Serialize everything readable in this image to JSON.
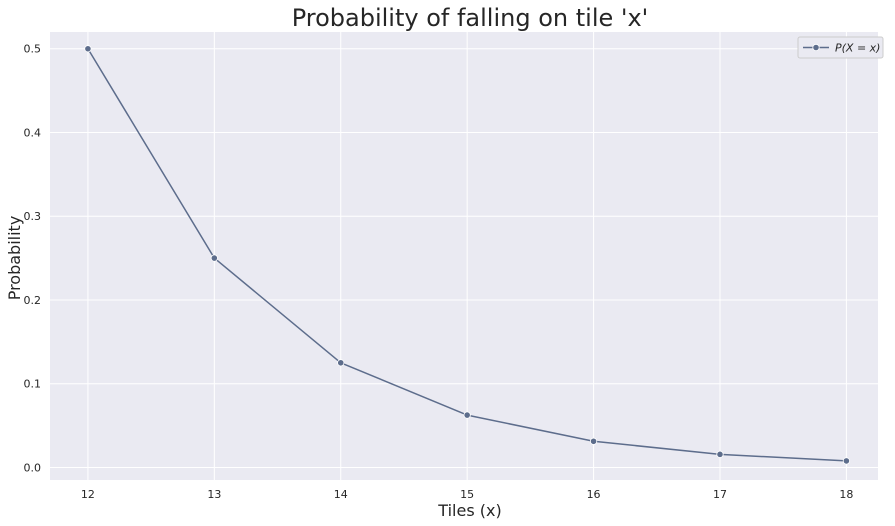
{
  "chart_data": {
    "type": "line",
    "title": "Probability of falling on tile 'x'",
    "xlabel": "Tiles (x)",
    "ylabel": "Probability",
    "x": [
      12,
      13,
      14,
      15,
      16,
      17,
      18
    ],
    "series": [
      {
        "name": "P(X = x)",
        "values": [
          0.5,
          0.25,
          0.125,
          0.0625,
          0.03125,
          0.015625,
          0.0078125
        ],
        "color": "#5d6d8c",
        "marker": "circle"
      }
    ],
    "xlim": [
      11.7,
      18.25
    ],
    "ylim": [
      -0.015,
      0.52
    ],
    "xticks": [
      12,
      13,
      14,
      15,
      16,
      17,
      18
    ],
    "xtick_labels": [
      "12",
      "13",
      "14",
      "15",
      "16",
      "17",
      "18"
    ],
    "yticks": [
      0.0,
      0.1,
      0.2,
      0.3,
      0.4,
      0.5
    ],
    "ytick_labels": [
      "0.0",
      "0.1",
      "0.2",
      "0.3",
      "0.4",
      "0.5"
    ],
    "grid": true,
    "legend_position": "top-right",
    "background_color": "#eaeaf2",
    "grid_color": "#ffffff"
  }
}
